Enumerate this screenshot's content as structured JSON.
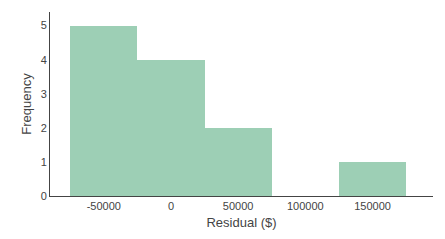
{
  "chart_data": {
    "type": "histogram",
    "bins": [
      -75000,
      -25000,
      25000,
      75000,
      125000,
      175000
    ],
    "values": [
      5,
      4,
      2,
      0,
      1
    ],
    "color": "#9dcfb5",
    "xlabel": "Residual ($)",
    "ylabel": "Frequency",
    "xlim": [
      -90000,
      195000
    ],
    "ylim": [
      0,
      5.4
    ],
    "xticks": [
      -50000,
      0,
      50000,
      100000,
      150000
    ],
    "yticks": [
      0,
      1,
      2,
      3,
      4,
      5
    ],
    "grid": false
  }
}
